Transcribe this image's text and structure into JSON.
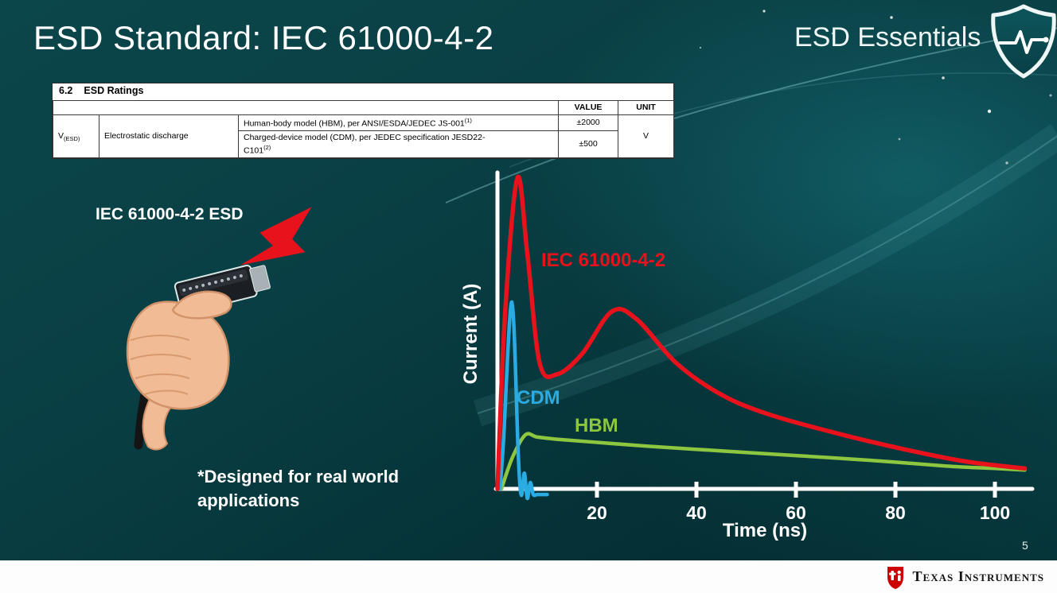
{
  "slide": {
    "title": "ESD Standard: IEC 61000-4-2",
    "series_brand": "ESD Essentials",
    "page_number": "5"
  },
  "ratings_table": {
    "section_number": "6.2",
    "section_title": "ESD Ratings",
    "col_value": "VALUE",
    "col_unit": "UNIT",
    "param_symbol": "V",
    "param_subscript": "(ESD)",
    "param_name": "Electrostatic discharge",
    "row_hbm": {
      "description": "Human-body model (HBM), per ANSI/ESDA/JEDEC JS-001",
      "superscript": "(1)",
      "value": "±2000"
    },
    "row_cdm": {
      "description_line1": "Charged-device model (CDM), per JEDEC specification JESD22-",
      "description_line2": "C101",
      "superscript": "(2)",
      "value": "±500"
    },
    "unit": "V"
  },
  "illustration": {
    "caption": "IEC 61000-4-2 ESD",
    "note_line1": "*Designed for real world",
    "note_line2": "applications"
  },
  "chart_data": {
    "type": "line",
    "title": "",
    "xlabel": "Time (ns)",
    "ylabel": "Current (A)",
    "xlim": [
      0,
      110
    ],
    "ylim": [
      0,
      1.05
    ],
    "x_ticks": [
      20,
      40,
      60,
      80,
      100
    ],
    "grid": false,
    "legend_position": "inline-labels",
    "series": [
      {
        "name": "IEC 61000-4-2",
        "color": "#e8121c",
        "x": [
          0,
          1.5,
          4,
          6,
          8.5,
          12,
          17,
          23,
          28,
          36,
          45,
          55,
          70,
          85,
          95,
          106
        ],
        "y": [
          0,
          0.55,
          0.99,
          0.75,
          0.4,
          0.365,
          0.43,
          0.565,
          0.54,
          0.4,
          0.3,
          0.235,
          0.17,
          0.115,
          0.085,
          0.065
        ]
      },
      {
        "name": "CDM",
        "color": "#2aabe2",
        "x": [
          0.5,
          1.2,
          2.9,
          4.2,
          4.8,
          5.4,
          6.0,
          6.6,
          7.2,
          8.0,
          10.0
        ],
        "y": [
          0,
          0.15,
          0.595,
          0.1,
          -0.02,
          0.05,
          -0.03,
          0.02,
          -0.018,
          -0.018,
          -0.018
        ]
      },
      {
        "name": "HBM",
        "color": "#8dc63f",
        "x": [
          0.8,
          3,
          5.6,
          8,
          12,
          20,
          30,
          45,
          60,
          75,
          90,
          100,
          106
        ],
        "y": [
          0,
          0.1,
          0.172,
          0.165,
          0.158,
          0.148,
          0.136,
          0.121,
          0.106,
          0.091,
          0.073,
          0.065,
          0.06
        ]
      }
    ]
  },
  "footer": {
    "logo_text": "Texas Instruments"
  },
  "colors": {
    "iec_red": "#e8121c",
    "cdm_blue": "#2aabe2",
    "hbm_green": "#8dc63f",
    "background_teal": "#093f44",
    "axis_white": "#ffffff"
  }
}
